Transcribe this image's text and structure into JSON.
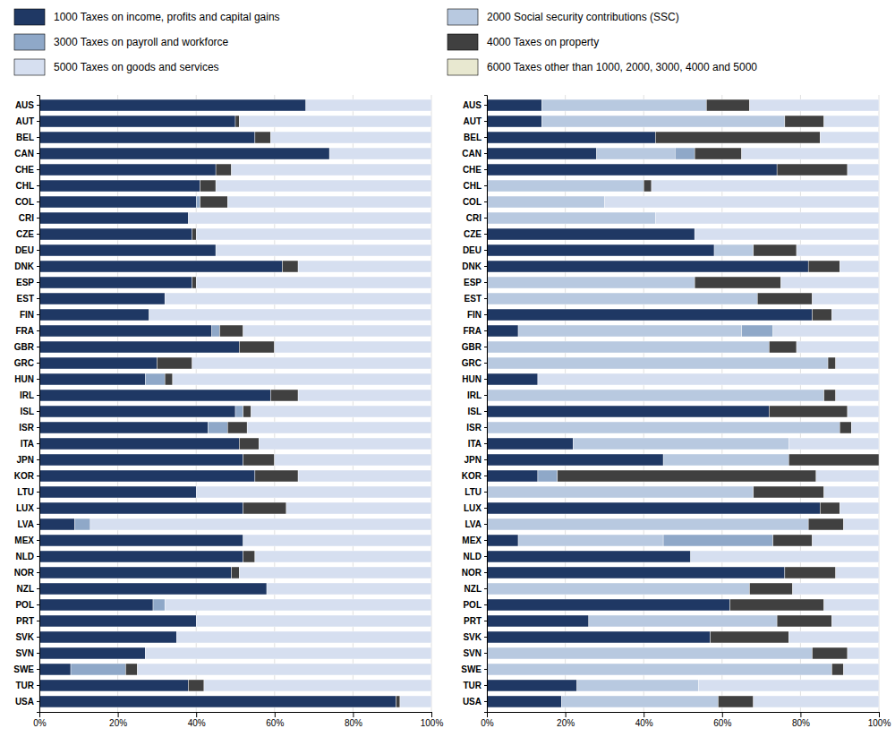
{
  "chart_data": [
    {
      "type": "bar",
      "orientation": "horizontal",
      "stacked": true,
      "grid": true,
      "categories": [
        "AUS",
        "AUT",
        "BEL",
        "CAN",
        "CHE",
        "CHL",
        "COL",
        "CRI",
        "CZE",
        "DEU",
        "DNK",
        "ESP",
        "EST",
        "FIN",
        "FRA",
        "GBR",
        "GRC",
        "HUN",
        "IRL",
        "ISL",
        "ISR",
        "ITA",
        "JPN",
        "KOR",
        "LTU",
        "LUX",
        "LVA",
        "MEX",
        "NLD",
        "NOR",
        "NZL",
        "POL",
        "PRT",
        "SVK",
        "SVN",
        "SWE",
        "TUR",
        "USA"
      ],
      "xlim": [
        0,
        100
      ],
      "xticks": [
        {
          "value": 0,
          "label": "0%"
        },
        {
          "value": 20,
          "label": "20%"
        },
        {
          "value": 40,
          "label": "40%"
        },
        {
          "value": 60,
          "label": "60%"
        },
        {
          "value": 80,
          "label": "80%"
        },
        {
          "value": 100,
          "label": "100%"
        }
      ],
      "series": [
        {
          "name": "1000 Taxes on income, profits and capital gains",
          "color": "#1f3864",
          "values": [
            68,
            50,
            55,
            74,
            45,
            41,
            40,
            38,
            39,
            45,
            62,
            39,
            32,
            28,
            44,
            51,
            30,
            27,
            59,
            50,
            43,
            51,
            52,
            55,
            40,
            52,
            9,
            52,
            52,
            49,
            58,
            29,
            40,
            35,
            27,
            8,
            38,
            91
          ]
        },
        {
          "name": "3000 Taxes on payroll and workforce",
          "color": "#8fa8c8",
          "values": [
            0,
            0,
            0,
            0,
            0,
            0,
            1,
            0,
            0,
            0,
            0,
            0,
            0,
            0,
            2,
            0,
            0,
            5,
            0,
            2,
            5,
            0,
            0,
            0,
            0,
            0,
            4,
            0,
            0,
            0,
            0,
            3,
            0,
            0,
            0,
            14,
            0,
            0
          ]
        },
        {
          "name": "4000 Taxes on property",
          "color": "#404040",
          "values": [
            0,
            1,
            4,
            0,
            4,
            4,
            7,
            0,
            1,
            0,
            4,
            1,
            0,
            0,
            6,
            9,
            9,
            2,
            7,
            2,
            5,
            5,
            8,
            11,
            0,
            11,
            0,
            0,
            3,
            2,
            0,
            0,
            0,
            0,
            0,
            3,
            4,
            1
          ]
        },
        {
          "name": "5000 Taxes on goods and services",
          "color": "#d6dff0",
          "values": [
            32,
            49,
            41,
            26,
            51,
            55,
            52,
            62,
            60,
            55,
            34,
            60,
            68,
            72,
            48,
            40,
            61,
            66,
            34,
            46,
            47,
            44,
            40,
            34,
            60,
            37,
            87,
            48,
            45,
            49,
            42,
            68,
            60,
            65,
            73,
            75,
            58,
            8
          ]
        }
      ]
    },
    {
      "type": "bar",
      "orientation": "horizontal",
      "stacked": true,
      "grid": true,
      "legend": "top",
      "categories": [
        "AUS",
        "AUT",
        "BEL",
        "CAN",
        "CHE",
        "CHL",
        "COL",
        "CRI",
        "CZE",
        "DEU",
        "DNK",
        "ESP",
        "EST",
        "FIN",
        "FRA",
        "GBR",
        "GRC",
        "HUN",
        "IRL",
        "ISL",
        "ISR",
        "ITA",
        "JPN",
        "KOR",
        "LTU",
        "LUX",
        "LVA",
        "MEX",
        "NLD",
        "NOR",
        "NZL",
        "POL",
        "PRT",
        "SVK",
        "SVN",
        "SWE",
        "TUR",
        "USA"
      ],
      "xlim": [
        0,
        100
      ],
      "xticks": [
        {
          "value": 0,
          "label": "0%"
        },
        {
          "value": 20,
          "label": "20%"
        },
        {
          "value": 40,
          "label": "40%"
        },
        {
          "value": 60,
          "label": "60%"
        },
        {
          "value": 80,
          "label": "80%"
        },
        {
          "value": 100,
          "label": "100%"
        }
      ],
      "series": [
        {
          "name": "1000 Taxes on income, profits and capital gains",
          "color": "#1f3864",
          "values": [
            14,
            14,
            43,
            28,
            74,
            0,
            0,
            0,
            53,
            58,
            82,
            0,
            0,
            83,
            8,
            0,
            0,
            13,
            0,
            72,
            0,
            22,
            45,
            13,
            0,
            85,
            0,
            8,
            52,
            76,
            0,
            62,
            26,
            57,
            0,
            0,
            23,
            19
          ]
        },
        {
          "name": "2000 Social security contributions (SSC)",
          "color": "#b8c9e0",
          "values": [
            42,
            62,
            0,
            20,
            0,
            40,
            30,
            43,
            0,
            10,
            0,
            53,
            69,
            0,
            57,
            72,
            87,
            0,
            86,
            0,
            90,
            55,
            32,
            0,
            68,
            0,
            82,
            37,
            0,
            0,
            67,
            0,
            48,
            0,
            83,
            88,
            31,
            40
          ]
        },
        {
          "name": "3000 Taxes on payroll and workforce",
          "color": "#8fa8c8",
          "values": [
            0,
            0,
            0,
            5,
            0,
            0,
            0,
            0,
            0,
            0,
            0,
            0,
            0,
            0,
            8,
            0,
            0,
            0,
            0,
            0,
            0,
            0,
            0,
            5,
            0,
            0,
            0,
            28,
            0,
            0,
            0,
            0,
            0,
            0,
            0,
            0,
            0,
            0
          ]
        },
        {
          "name": "4000 Taxes on property",
          "color": "#404040",
          "values": [
            11,
            10,
            42,
            12,
            18,
            2,
            0,
            0,
            0,
            11,
            8,
            22,
            14,
            5,
            0,
            7,
            2,
            0,
            3,
            20,
            3,
            0,
            23,
            66,
            18,
            5,
            9,
            10,
            0,
            13,
            11,
            24,
            14,
            20,
            9,
            3,
            0,
            9
          ]
        },
        {
          "name": "5000 Taxes on goods and services",
          "color": "#d6dff0",
          "values": [
            33,
            14,
            15,
            35,
            8,
            58,
            70,
            57,
            47,
            21,
            10,
            25,
            17,
            12,
            27,
            21,
            11,
            87,
            11,
            8,
            7,
            23,
            0,
            16,
            14,
            10,
            9,
            17,
            48,
            11,
            22,
            14,
            12,
            23,
            8,
            9,
            46,
            32
          ]
        },
        {
          "name": "6000 Taxes other than 1000, 2000, 3000, 4000 and 5000",
          "color": "#e8e8d0",
          "values": [
            0,
            0,
            0,
            0,
            0,
            0,
            0,
            0,
            0,
            0,
            0,
            0,
            0,
            0,
            0,
            0,
            0,
            0,
            0,
            0,
            0,
            0,
            0,
            0,
            0,
            0,
            0,
            0,
            0,
            0,
            0,
            0,
            0,
            0,
            0,
            0,
            0,
            0
          ]
        }
      ]
    }
  ]
}
